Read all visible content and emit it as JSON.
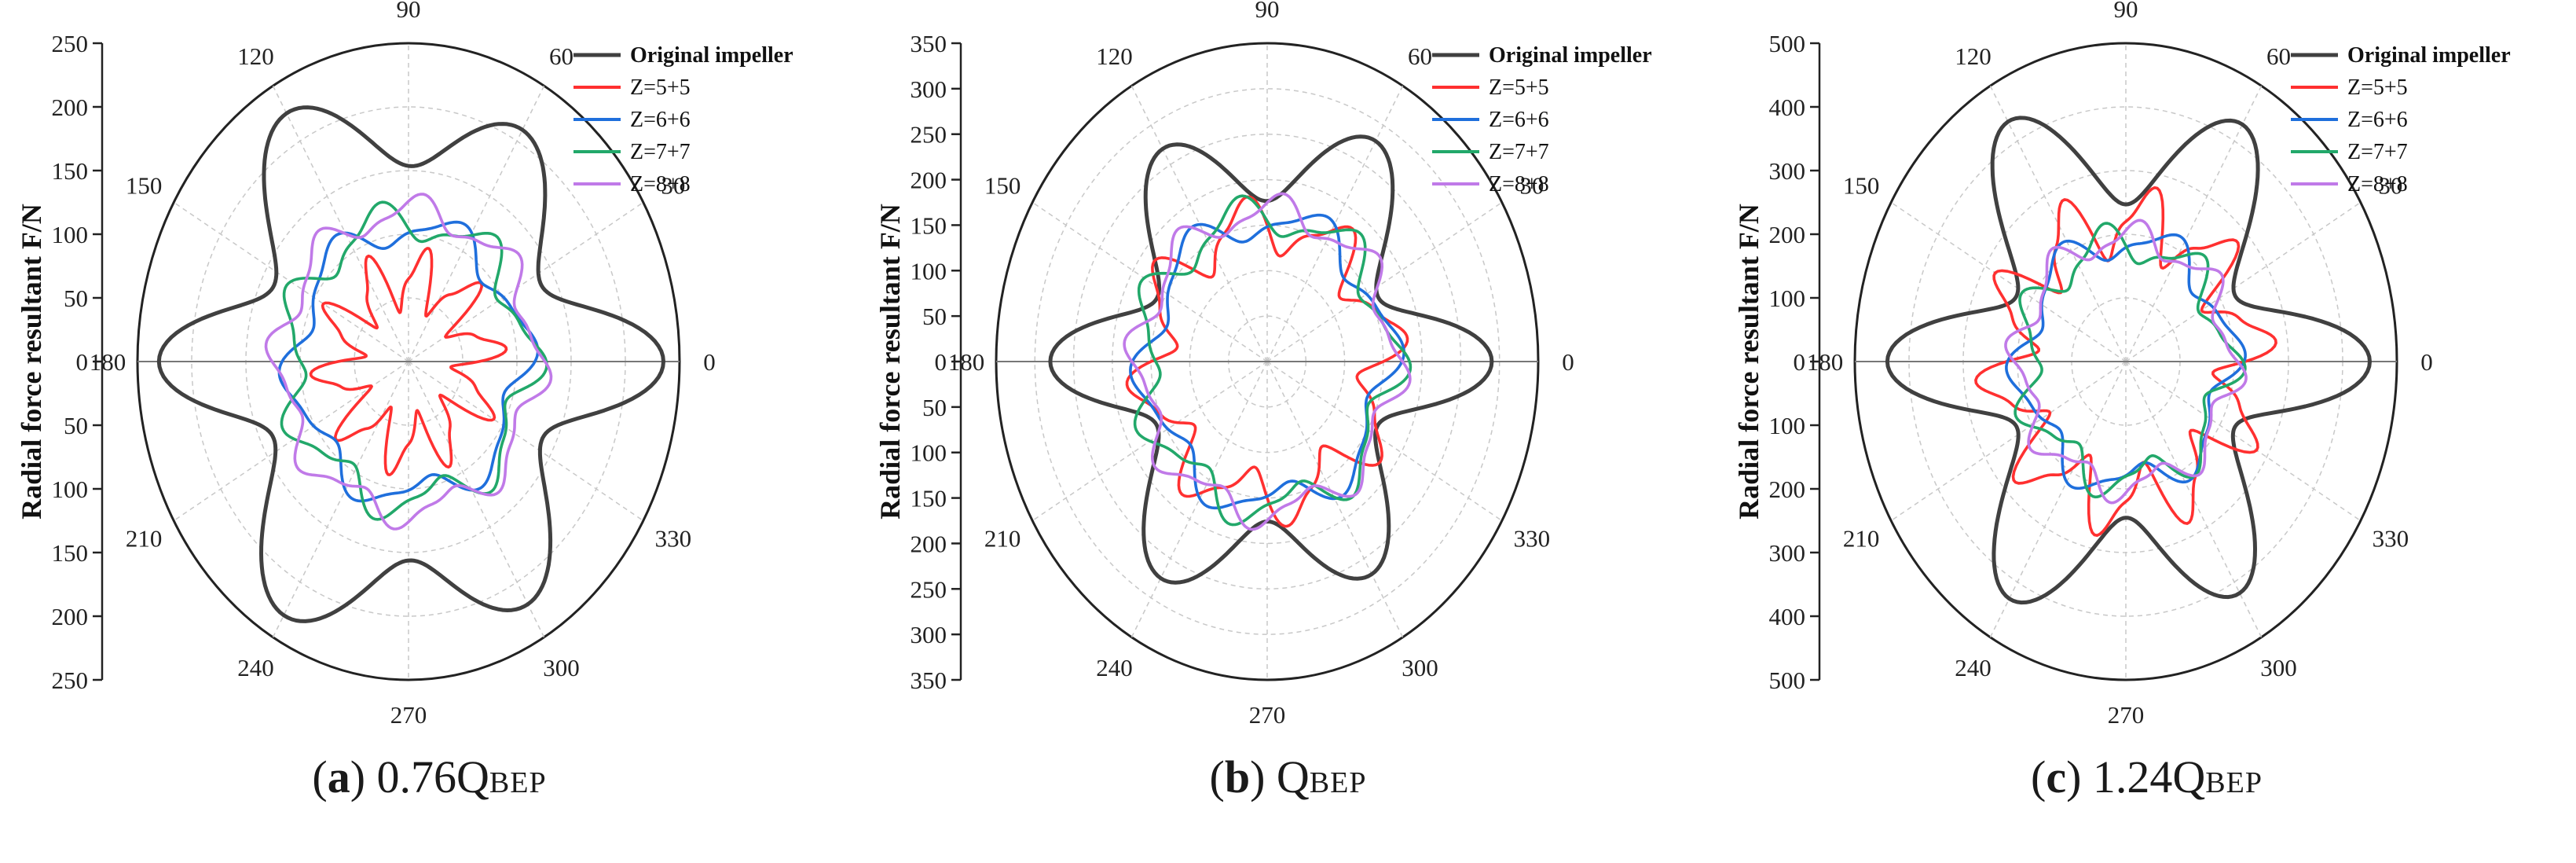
{
  "chart_data": [
    {
      "type": "polar-line",
      "panel_label": "a",
      "caption_prefix": "0.76Q",
      "caption_subscript": "BEP",
      "ylabel": "Radial force resultant F/N",
      "rmax": 250,
      "r_ticks": [
        0,
        50,
        100,
        150,
        200,
        250
      ],
      "angle_ticks": [
        0,
        30,
        60,
        90,
        120,
        150,
        180,
        210,
        240,
        270,
        300,
        330
      ],
      "angle_unit": "degrees",
      "legend_position": "top-right",
      "series": [
        {
          "name": "Original impeller",
          "color": "#404040",
          "r0": 120,
          "lobes": [
            {
              "c": 0,
              "a": 115,
              "w": 11
            },
            {
              "c": 60,
              "a": 90,
              "w": 16
            },
            {
              "c": 120,
              "a": 105,
              "w": 16
            },
            {
              "c": 180,
              "a": 110,
              "w": 11
            },
            {
              "c": 240,
              "a": 110,
              "w": 16
            },
            {
              "c": 300,
              "a": 100,
              "w": 16
            }
          ],
          "ripple": [
            0,
            0,
            0
          ]
        },
        {
          "name": "Z=5+5",
          "color": "#ff3030",
          "r0": 65,
          "lobes": [],
          "ripple": [
            22,
            10,
            0
          ]
        },
        {
          "name": "Z=6+6",
          "color": "#1f6fdc",
          "r0": 105,
          "lobes": [],
          "ripple": [
            12,
            6,
            0.7
          ]
        },
        {
          "name": "Z=7+7",
          "color": "#22a86a",
          "r0": 110,
          "lobes": [],
          "ripple": [
            14,
            7,
            1.4
          ]
        },
        {
          "name": "Z=8+8",
          "color": "#c07ae8",
          "r0": 118,
          "lobes": [],
          "ripple": [
            11,
            8,
            2.1
          ]
        }
      ]
    },
    {
      "type": "polar-line",
      "panel_label": "b",
      "caption_prefix": "Q",
      "caption_subscript": "BEP",
      "ylabel": "Radial force resultant F/N",
      "rmax": 350,
      "r_ticks": [
        0,
        50,
        100,
        150,
        200,
        250,
        300,
        350
      ],
      "angle_ticks": [
        0,
        30,
        60,
        90,
        120,
        150,
        180,
        210,
        240,
        270,
        300,
        330
      ],
      "angle_unit": "degrees",
      "legend_position": "top-right",
      "series": [
        {
          "name": "Original impeller",
          "color": "#404040",
          "r0": 140,
          "lobes": [
            {
              "c": 0,
              "a": 150,
              "w": 11
            },
            {
              "c": 60,
              "a": 140,
              "w": 15
            },
            {
              "c": 120,
              "a": 130,
              "w": 15
            },
            {
              "c": 180,
              "a": 140,
              "w": 11
            },
            {
              "c": 240,
              "a": 135,
              "w": 15
            },
            {
              "c": 300,
              "a": 130,
              "w": 15
            }
          ],
          "ripple": [
            0,
            0,
            0
          ]
        },
        {
          "name": "Z=5+5",
          "color": "#ff3030",
          "r0": 150,
          "lobes": [],
          "ripple": [
            28,
            8,
            0
          ]
        },
        {
          "name": "Z=6+6",
          "color": "#1f6fdc",
          "r0": 155,
          "lobes": [],
          "ripple": [
            18,
            6,
            0.8
          ]
        },
        {
          "name": "Z=7+7",
          "color": "#22a86a",
          "r0": 160,
          "lobes": [],
          "ripple": [
            20,
            7,
            1.5
          ]
        },
        {
          "name": "Z=8+8",
          "color": "#c07ae8",
          "r0": 165,
          "lobes": [],
          "ripple": [
            16,
            8,
            2.2
          ]
        }
      ]
    },
    {
      "type": "polar-line",
      "panel_label": "c",
      "caption_prefix": "1.24Q",
      "caption_subscript": "BEP",
      "ylabel": "Radial force resultant F/N",
      "rmax": 500,
      "r_ticks": [
        0,
        100,
        200,
        300,
        400,
        500
      ],
      "angle_ticks": [
        0,
        30,
        60,
        90,
        120,
        150,
        180,
        210,
        240,
        270,
        300,
        330
      ],
      "angle_unit": "degrees",
      "legend_position": "top-right",
      "series": [
        {
          "name": "Original impeller",
          "color": "#404040",
          "r0": 200,
          "lobes": [
            {
              "c": 0,
              "a": 250,
              "w": 11
            },
            {
              "c": 60,
              "a": 230,
              "w": 14
            },
            {
              "c": 120,
              "a": 235,
              "w": 14
            },
            {
              "c": 180,
              "a": 240,
              "w": 11
            },
            {
              "c": 240,
              "a": 230,
              "w": 14
            },
            {
              "c": 300,
              "a": 220,
              "w": 14
            }
          ],
          "ripple": [
            0,
            0,
            0
          ]
        },
        {
          "name": "Z=5+5",
          "color": "#ff3030",
          "r0": 220,
          "lobes": [],
          "ripple": [
            50,
            10,
            0
          ]
        },
        {
          "name": "Z=6+6",
          "color": "#1f6fdc",
          "r0": 190,
          "lobes": [],
          "ripple": [
            25,
            6,
            0.9
          ]
        },
        {
          "name": "Z=7+7",
          "color": "#22a86a",
          "r0": 185,
          "lobes": [],
          "ripple": [
            28,
            7,
            1.6
          ]
        },
        {
          "name": "Z=8+8",
          "color": "#c07ae8",
          "r0": 195,
          "lobes": [],
          "ripple": [
            22,
            8,
            2.3
          ]
        }
      ]
    }
  ]
}
